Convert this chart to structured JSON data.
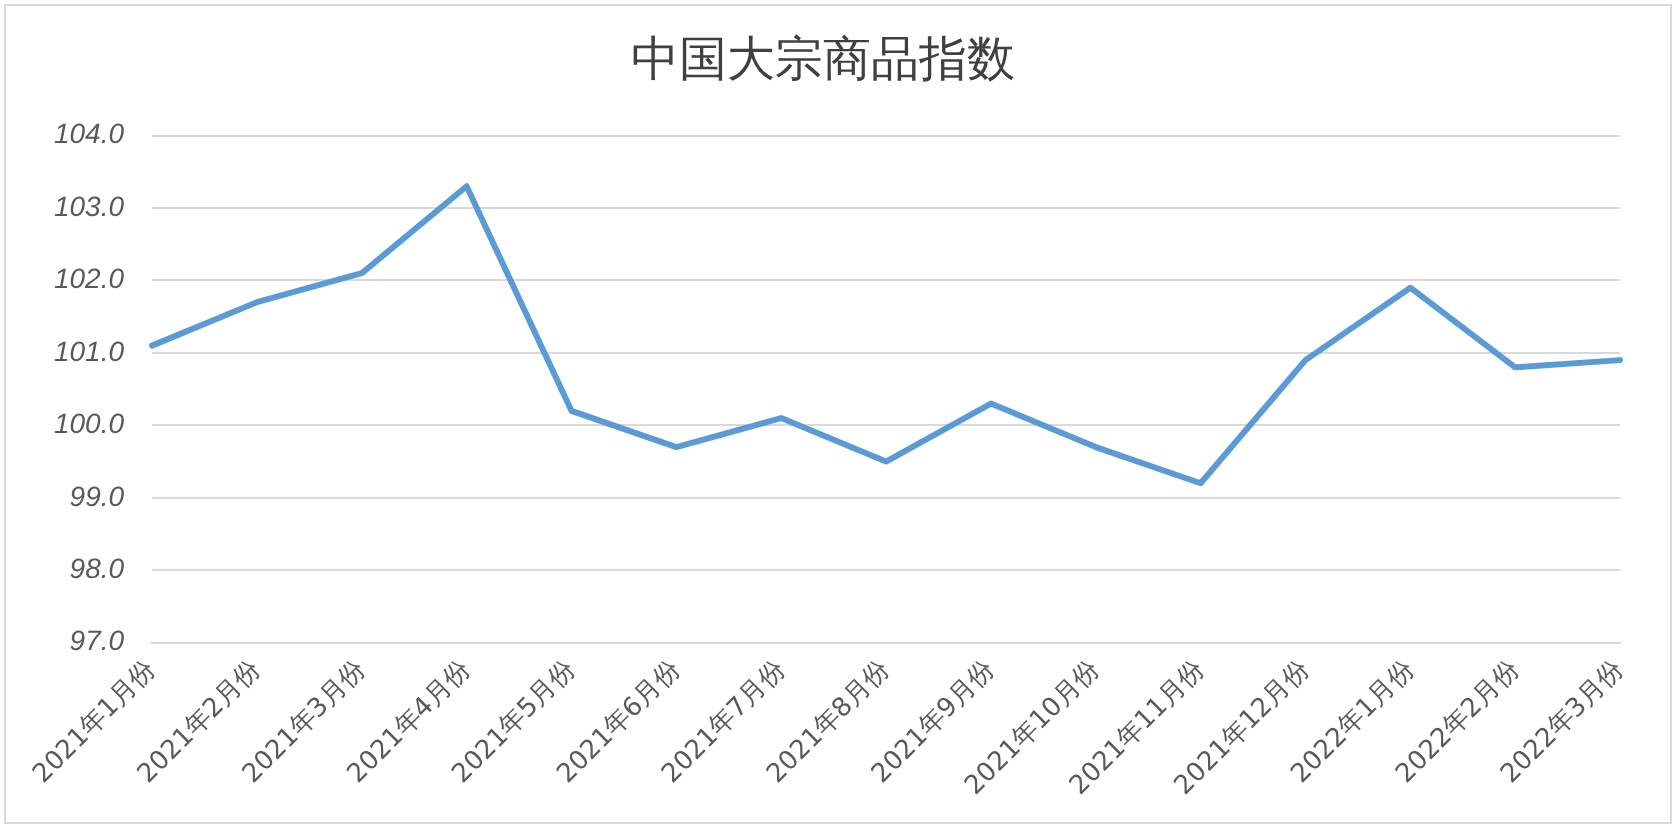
{
  "chart_data": {
    "type": "line",
    "title": "中国大宗商品指数",
    "categories": [
      "2021年1月份",
      "2021年2月份",
      "2021年3月份",
      "2021年4月份",
      "2021年5月份",
      "2021年6月份",
      "2021年7月份",
      "2021年8月份",
      "2021年9月份",
      "2021年10月份",
      "2021年11月份",
      "2021年12月份",
      "2022年1月份",
      "2022年2月份",
      "2022年3月份"
    ],
    "series": [
      {
        "color": "#5b9bd5",
        "values": [
          101.1,
          101.7,
          102.1,
          103.3,
          100.2,
          99.7,
          100.1,
          99.5,
          100.3,
          99.7,
          99.2,
          100.9,
          101.9,
          100.8,
          100.9
        ]
      }
    ],
    "ylim": [
      97,
      104
    ],
    "yticks": [
      {
        "value": 97,
        "label": "97.0"
      },
      {
        "value": 98,
        "label": "98.0"
      },
      {
        "value": 99,
        "label": "99.0"
      },
      {
        "value": 100,
        "label": "100.0"
      },
      {
        "value": 101,
        "label": "101.0"
      },
      {
        "value": 102,
        "label": "102.0"
      },
      {
        "value": 103,
        "label": "103.0"
      },
      {
        "value": 104,
        "label": "104.0"
      }
    ],
    "grid": "y",
    "legend": false,
    "marker": "none",
    "line_style": "solid"
  }
}
